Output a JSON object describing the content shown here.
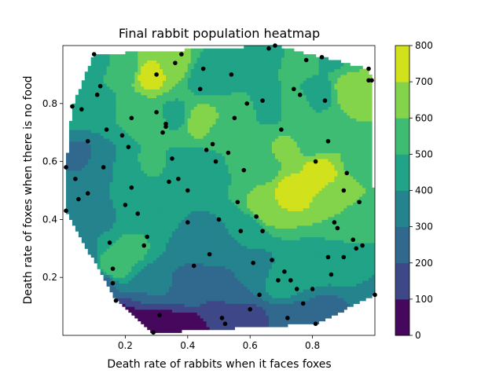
{
  "chart_data": {
    "type": "heatmap",
    "title": "Final rabbit population heatmap",
    "xlabel": "Death rate of rabbits when it faces foxes",
    "ylabel": "Death rate of foxes when there is no food",
    "xlim": [
      0.0,
      1.0
    ],
    "ylim": [
      0.0,
      1.0
    ],
    "x_ticks": [
      "0.2",
      "0.4",
      "0.6",
      "0.8"
    ],
    "y_ticks": [
      "0.2",
      "0.4",
      "0.6",
      "0.8"
    ],
    "colorbar": {
      "levels": [
        0,
        100,
        200,
        300,
        400,
        500,
        600,
        700,
        800
      ],
      "tick_labels": [
        "0",
        "100",
        "200",
        "300",
        "400",
        "500",
        "600",
        "700",
        "800"
      ],
      "colors": [
        "#46085c",
        "#3e4889",
        "#30688e",
        "#25838e",
        "#20a386",
        "#3fbc73",
        "#84d44b",
        "#d1e11c"
      ]
    },
    "sample_points": [
      [
        0.01,
        0.58
      ],
      [
        0.01,
        0.43
      ],
      [
        0.03,
        0.79
      ],
      [
        0.04,
        0.54
      ],
      [
        0.05,
        0.47
      ],
      [
        0.06,
        0.78
      ],
      [
        0.08,
        0.67
      ],
      [
        0.08,
        0.49
      ],
      [
        0.1,
        0.97
      ],
      [
        0.11,
        0.83
      ],
      [
        0.12,
        0.86
      ],
      [
        0.13,
        0.58
      ],
      [
        0.14,
        0.71
      ],
      [
        0.15,
        0.32
      ],
      [
        0.16,
        0.23
      ],
      [
        0.16,
        0.18
      ],
      [
        0.17,
        0.12
      ],
      [
        0.19,
        0.69
      ],
      [
        0.2,
        0.45
      ],
      [
        0.21,
        0.65
      ],
      [
        0.22,
        0.75
      ],
      [
        0.22,
        0.51
      ],
      [
        0.24,
        0.42
      ],
      [
        0.26,
        0.31
      ],
      [
        0.27,
        0.34
      ],
      [
        0.29,
        0.01
      ],
      [
        0.3,
        0.77
      ],
      [
        0.3,
        0.9
      ],
      [
        0.31,
        0.07
      ],
      [
        0.32,
        0.7
      ],
      [
        0.33,
        0.72
      ],
      [
        0.33,
        0.73
      ],
      [
        0.34,
        0.53
      ],
      [
        0.35,
        0.61
      ],
      [
        0.36,
        0.94
      ],
      [
        0.37,
        0.54
      ],
      [
        0.38,
        0.97
      ],
      [
        0.4,
        0.39
      ],
      [
        0.4,
        0.5
      ],
      [
        0.42,
        0.24
      ],
      [
        0.44,
        0.85
      ],
      [
        0.45,
        0.92
      ],
      [
        0.46,
        0.64
      ],
      [
        0.47,
        0.28
      ],
      [
        0.48,
        0.66
      ],
      [
        0.49,
        0.6
      ],
      [
        0.5,
        0.4
      ],
      [
        0.51,
        0.06
      ],
      [
        0.52,
        0.04
      ],
      [
        0.53,
        0.63
      ],
      [
        0.54,
        0.9
      ],
      [
        0.55,
        0.75
      ],
      [
        0.56,
        0.46
      ],
      [
        0.57,
        0.36
      ],
      [
        0.58,
        0.57
      ],
      [
        0.59,
        0.8
      ],
      [
        0.6,
        0.09
      ],
      [
        0.61,
        0.25
      ],
      [
        0.62,
        0.41
      ],
      [
        0.63,
        0.14
      ],
      [
        0.64,
        0.36
      ],
      [
        0.64,
        0.81
      ],
      [
        0.66,
        0.99
      ],
      [
        0.67,
        0.26
      ],
      [
        0.68,
        1.0
      ],
      [
        0.69,
        0.19
      ],
      [
        0.7,
        0.71
      ],
      [
        0.71,
        0.22
      ],
      [
        0.72,
        0.06
      ],
      [
        0.73,
        0.19
      ],
      [
        0.74,
        0.85
      ],
      [
        0.75,
        0.16
      ],
      [
        0.76,
        0.83
      ],
      [
        0.77,
        0.11
      ],
      [
        0.78,
        0.95
      ],
      [
        0.8,
        0.16
      ],
      [
        0.81,
        0.04
      ],
      [
        0.81,
        0.6
      ],
      [
        0.83,
        0.96
      ],
      [
        0.84,
        0.81
      ],
      [
        0.85,
        0.67
      ],
      [
        0.85,
        0.27
      ],
      [
        0.86,
        0.21
      ],
      [
        0.87,
        0.39
      ],
      [
        0.88,
        0.37
      ],
      [
        0.9,
        0.5
      ],
      [
        0.9,
        0.27
      ],
      [
        0.91,
        0.56
      ],
      [
        0.93,
        0.33
      ],
      [
        0.94,
        0.3
      ],
      [
        0.95,
        0.46
      ],
      [
        0.96,
        0.31
      ],
      [
        0.98,
        0.88
      ],
      [
        0.98,
        0.92
      ],
      [
        0.99,
        0.88
      ],
      [
        1.0,
        0.14
      ]
    ],
    "field_anchors": [
      {
        "x": 0.02,
        "y": 0.08,
        "v": 150
      },
      {
        "x": 0.08,
        "y": 0.04,
        "v": 90
      },
      {
        "x": 0.18,
        "y": 0.05,
        "v": 60
      },
      {
        "x": 0.3,
        "y": 0.03,
        "v": 30
      },
      {
        "x": 0.4,
        "y": 0.02,
        "v": 40
      },
      {
        "x": 0.5,
        "y": 0.06,
        "v": 110
      },
      {
        "x": 0.6,
        "y": 0.05,
        "v": 170
      },
      {
        "x": 0.72,
        "y": 0.05,
        "v": 210
      },
      {
        "x": 0.85,
        "y": 0.08,
        "v": 260
      },
      {
        "x": 0.96,
        "y": 0.12,
        "v": 300
      },
      {
        "x": 0.05,
        "y": 0.25,
        "v": 280
      },
      {
        "x": 0.12,
        "y": 0.18,
        "v": 260
      },
      {
        "x": 0.16,
        "y": 0.24,
        "v": 560
      },
      {
        "x": 0.22,
        "y": 0.3,
        "v": 520
      },
      {
        "x": 0.3,
        "y": 0.18,
        "v": 310
      },
      {
        "x": 0.42,
        "y": 0.16,
        "v": 250
      },
      {
        "x": 0.52,
        "y": 0.16,
        "v": 230
      },
      {
        "x": 0.6,
        "y": 0.22,
        "v": 340
      },
      {
        "x": 0.7,
        "y": 0.18,
        "v": 440
      },
      {
        "x": 0.8,
        "y": 0.24,
        "v": 460
      },
      {
        "x": 0.92,
        "y": 0.22,
        "v": 440
      },
      {
        "x": 0.04,
        "y": 0.45,
        "v": 320
      },
      {
        "x": 0.12,
        "y": 0.42,
        "v": 380
      },
      {
        "x": 0.22,
        "y": 0.45,
        "v": 440
      },
      {
        "x": 0.32,
        "y": 0.42,
        "v": 470
      },
      {
        "x": 0.42,
        "y": 0.35,
        "v": 350
      },
      {
        "x": 0.5,
        "y": 0.3,
        "v": 320
      },
      {
        "x": 0.58,
        "y": 0.36,
        "v": 420
      },
      {
        "x": 0.66,
        "y": 0.45,
        "v": 700
      },
      {
        "x": 0.74,
        "y": 0.5,
        "v": 740
      },
      {
        "x": 0.82,
        "y": 0.56,
        "v": 740
      },
      {
        "x": 0.88,
        "y": 0.48,
        "v": 660
      },
      {
        "x": 0.94,
        "y": 0.4,
        "v": 520
      },
      {
        "x": 0.96,
        "y": 0.6,
        "v": 560
      },
      {
        "x": 0.06,
        "y": 0.62,
        "v": 280
      },
      {
        "x": 0.12,
        "y": 0.6,
        "v": 360
      },
      {
        "x": 0.2,
        "y": 0.58,
        "v": 420
      },
      {
        "x": 0.28,
        "y": 0.6,
        "v": 520
      },
      {
        "x": 0.38,
        "y": 0.58,
        "v": 470
      },
      {
        "x": 0.46,
        "y": 0.58,
        "v": 420
      },
      {
        "x": 0.52,
        "y": 0.55,
        "v": 500
      },
      {
        "x": 0.58,
        "y": 0.62,
        "v": 540
      },
      {
        "x": 0.64,
        "y": 0.58,
        "v": 560
      },
      {
        "x": 0.72,
        "y": 0.64,
        "v": 620
      },
      {
        "x": 0.8,
        "y": 0.68,
        "v": 520
      },
      {
        "x": 0.9,
        "y": 0.72,
        "v": 600
      },
      {
        "x": 0.04,
        "y": 0.8,
        "v": 500
      },
      {
        "x": 0.12,
        "y": 0.78,
        "v": 430
      },
      {
        "x": 0.2,
        "y": 0.78,
        "v": 520
      },
      {
        "x": 0.28,
        "y": 0.74,
        "v": 560
      },
      {
        "x": 0.36,
        "y": 0.76,
        "v": 470
      },
      {
        "x": 0.44,
        "y": 0.74,
        "v": 660
      },
      {
        "x": 0.5,
        "y": 0.7,
        "v": 580
      },
      {
        "x": 0.58,
        "y": 0.78,
        "v": 520
      },
      {
        "x": 0.66,
        "y": 0.8,
        "v": 430
      },
      {
        "x": 0.74,
        "y": 0.8,
        "v": 560
      },
      {
        "x": 0.82,
        "y": 0.84,
        "v": 430
      },
      {
        "x": 0.92,
        "y": 0.85,
        "v": 680
      },
      {
        "x": 0.98,
        "y": 0.9,
        "v": 620
      },
      {
        "x": 0.1,
        "y": 0.94,
        "v": 480
      },
      {
        "x": 0.2,
        "y": 0.92,
        "v": 540
      },
      {
        "x": 0.28,
        "y": 0.9,
        "v": 740
      },
      {
        "x": 0.36,
        "y": 0.94,
        "v": 640
      },
      {
        "x": 0.46,
        "y": 0.9,
        "v": 420
      },
      {
        "x": 0.56,
        "y": 0.94,
        "v": 400
      },
      {
        "x": 0.66,
        "y": 0.96,
        "v": 480
      },
      {
        "x": 0.76,
        "y": 0.94,
        "v": 560
      },
      {
        "x": 0.86,
        "y": 0.96,
        "v": 480
      },
      {
        "x": 0.96,
        "y": 0.96,
        "v": 520
      }
    ]
  }
}
